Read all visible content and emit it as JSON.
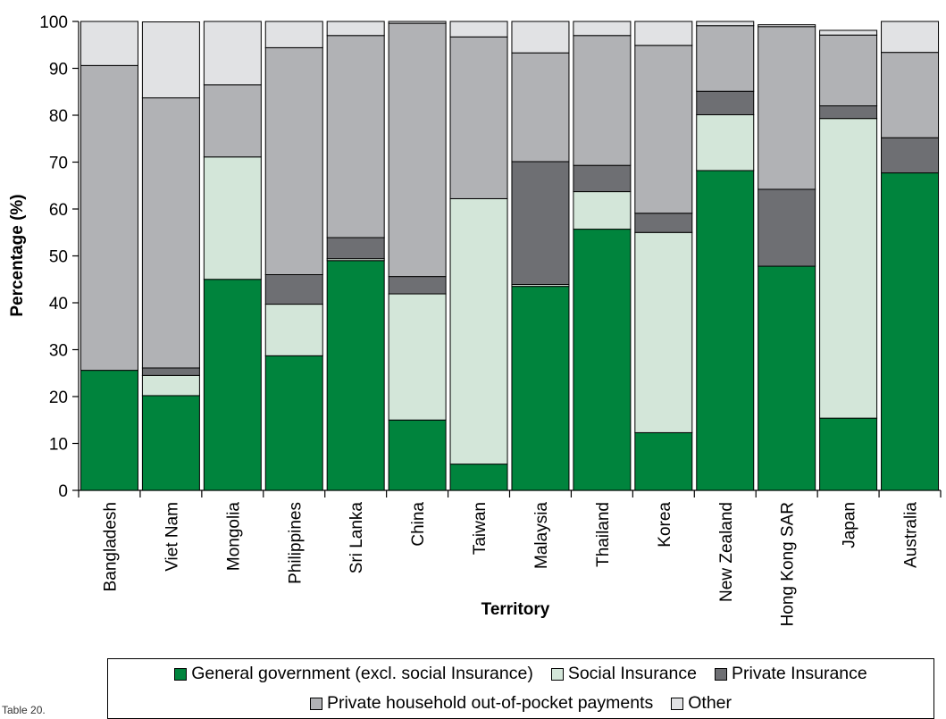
{
  "chart_data": {
    "type": "bar",
    "stacked": true,
    "title": "",
    "xlabel": "Territory",
    "ylabel": "Percentage (%)",
    "ylim": [
      0,
      100
    ],
    "yticks": [
      0,
      10,
      20,
      30,
      40,
      50,
      60,
      70,
      80,
      90,
      100
    ],
    "grid": false,
    "legend_position": "bottom",
    "categories": [
      "Bangladesh",
      "Viet Nam",
      "Mongolia",
      "Philippines",
      "Sri  Lanka",
      "China",
      "Taiwan",
      "Malaysia",
      "Thailand",
      "Korea",
      "New Zealand",
      "Hong Kong SAR",
      "Japan",
      "Australia"
    ],
    "series": [
      {
        "name": "General government (excl. social Insurance)",
        "color": "#00843d",
        "values": [
          25.6,
          20.2,
          45.0,
          28.7,
          49.0,
          15.0,
          5.6,
          43.5,
          55.7,
          12.3,
          68.2,
          47.8,
          15.4,
          67.7
        ]
      },
      {
        "name": "Social Insurance",
        "color": "#d3e6d9",
        "values": [
          0.0,
          4.3,
          26.1,
          11.0,
          0.4,
          26.9,
          56.6,
          0.4,
          8.0,
          42.7,
          11.9,
          0.0,
          63.9,
          0.0
        ]
      },
      {
        "name": "Private Insurance",
        "color": "#6e6f73",
        "values": [
          0.0,
          1.6,
          0.0,
          6.3,
          4.5,
          3.7,
          0.0,
          26.2,
          5.6,
          4.1,
          5.0,
          16.4,
          2.7,
          7.5
        ]
      },
      {
        "name": "Private household out-of-pocket payments",
        "color": "#b1b2b5",
        "values": [
          65.0,
          57.6,
          15.4,
          48.4,
          43.1,
          54.0,
          34.5,
          23.2,
          27.7,
          35.8,
          14.0,
          34.7,
          15.1,
          18.2
        ]
      },
      {
        "name": "Other",
        "color": "#e1e2e4",
        "values": [
          9.4,
          16.2,
          13.5,
          5.6,
          3.0,
          0.4,
          3.3,
          6.7,
          3.0,
          5.1,
          0.9,
          0.4,
          1.0,
          6.6
        ]
      }
    ]
  },
  "legend": {
    "row1": [
      {
        "label": "General government (excl. social Insurance)",
        "color": "#00843d"
      },
      {
        "label": "Social Insurance",
        "color": "#d3e6d9"
      },
      {
        "label": "Private Insurance",
        "color": "#6e6f73"
      }
    ],
    "row2": [
      {
        "label": "Private household out-of-pocket payments",
        "color": "#b1b2b5"
      },
      {
        "label": "Other",
        "color": "#e1e2e4"
      }
    ]
  },
  "caption": "Table 20."
}
